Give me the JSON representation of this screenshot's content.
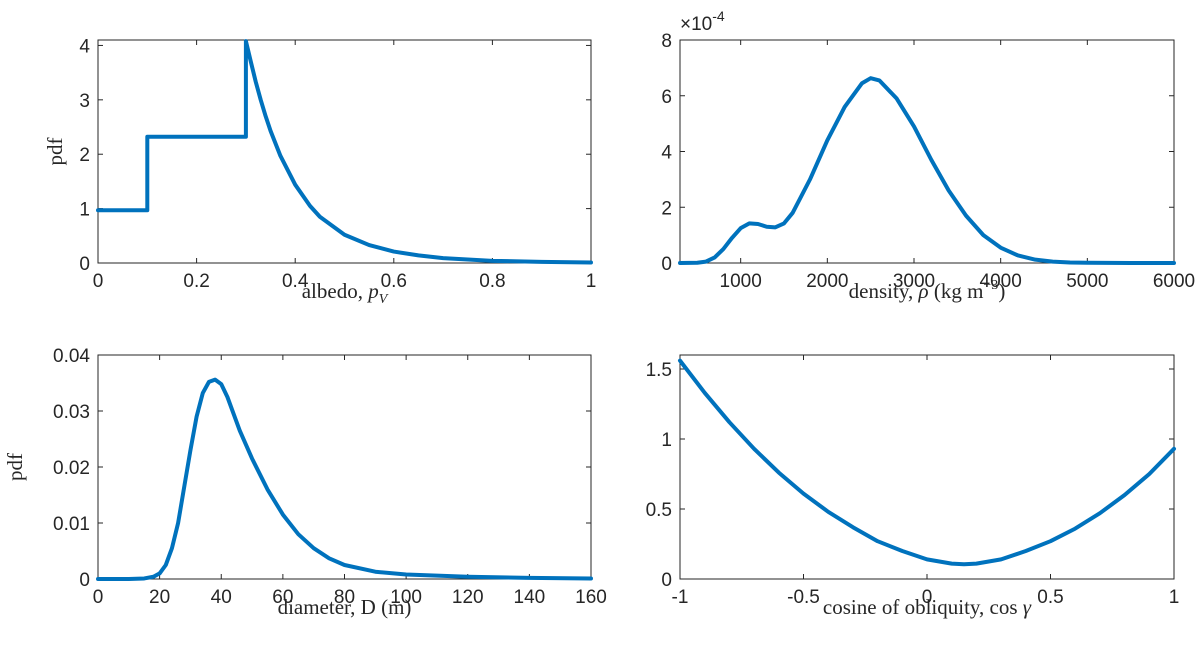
{
  "colors": {
    "line": "#0072BD",
    "axes": "#262626"
  },
  "chart_data": [
    {
      "type": "line",
      "xlabel_parts": [
        "albedo, ",
        "p",
        "V"
      ],
      "ylabel": "pdf",
      "xlim": [
        0,
        1
      ],
      "ylim": [
        0,
        4.1
      ],
      "xticks": [
        0,
        0.2,
        0.4,
        0.6,
        0.8,
        1
      ],
      "xtick_labels": [
        "0",
        "0.2",
        "0.4",
        "0.6",
        "0.8",
        "1"
      ],
      "yticks": [
        0,
        1,
        2,
        3,
        4
      ],
      "ytick_labels": [
        "0",
        "1",
        "2",
        "3",
        "4"
      ],
      "grid": false,
      "series": [
        {
          "x": [
            0,
            0.1,
            0.1,
            0.3,
            0.3,
            0.31,
            0.32,
            0.33,
            0.34,
            0.35,
            0.37,
            0.4,
            0.43,
            0.45,
            0.5,
            0.55,
            0.6,
            0.65,
            0.7,
            0.8,
            0.9,
            1.0
          ],
          "y": [
            0.97,
            0.97,
            2.32,
            2.32,
            4.08,
            3.7,
            3.33,
            3.0,
            2.7,
            2.43,
            1.97,
            1.44,
            1.05,
            0.85,
            0.52,
            0.33,
            0.21,
            0.14,
            0.09,
            0.04,
            0.02,
            0.01
          ]
        }
      ]
    },
    {
      "type": "line",
      "xlabel_parts": [
        "density, ",
        "ρ",
        " (kg m",
        "−3",
        ")"
      ],
      "ylabel": "",
      "exponent": [
        "×10",
        "-4"
      ],
      "xlim": [
        300,
        6000
      ],
      "ylim": [
        0,
        8
      ],
      "xticks": [
        1000,
        2000,
        3000,
        4000,
        5000,
        6000
      ],
      "xtick_labels": [
        "1000",
        "2000",
        "3000",
        "4000",
        "5000",
        "6000"
      ],
      "yticks": [
        0,
        2,
        4,
        6,
        8
      ],
      "ytick_labels": [
        "0",
        "2",
        "4",
        "6",
        "8"
      ],
      "grid": false,
      "series": [
        {
          "x": [
            300,
            500,
            600,
            700,
            800,
            900,
            1000,
            1100,
            1200,
            1300,
            1400,
            1500,
            1600,
            1800,
            2000,
            2200,
            2400,
            2500,
            2600,
            2800,
            3000,
            3200,
            3400,
            3600,
            3800,
            4000,
            4200,
            4400,
            4600,
            4800,
            5000,
            5500,
            6000
          ],
          "y": [
            0,
            0.01,
            0.05,
            0.2,
            0.5,
            0.9,
            1.25,
            1.42,
            1.4,
            1.3,
            1.28,
            1.42,
            1.8,
            3.0,
            4.4,
            5.6,
            6.45,
            6.63,
            6.55,
            5.9,
            4.9,
            3.7,
            2.6,
            1.7,
            1.0,
            0.55,
            0.27,
            0.12,
            0.05,
            0.02,
            0.01,
            0,
            0
          ]
        }
      ]
    },
    {
      "type": "line",
      "xlabel_parts": [
        "diameter, D (m)"
      ],
      "ylabel": "pdf",
      "xlim": [
        0,
        160
      ],
      "ylim": [
        0,
        0.04
      ],
      "xticks": [
        0,
        20,
        40,
        60,
        80,
        100,
        120,
        140,
        160
      ],
      "xtick_labels": [
        "0",
        "20",
        "40",
        "60",
        "80",
        "100",
        "120",
        "140",
        "160"
      ],
      "yticks": [
        0,
        0.01,
        0.02,
        0.03,
        0.04
      ],
      "ytick_labels": [
        "0",
        "0.01",
        "0.02",
        "0.03",
        "0.04"
      ],
      "grid": false,
      "series": [
        {
          "x": [
            0,
            10,
            15,
            18,
            20,
            22,
            24,
            26,
            28,
            30,
            32,
            34,
            36,
            38,
            40,
            42,
            44,
            46,
            48,
            50,
            55,
            60,
            65,
            70,
            75,
            80,
            90,
            100,
            120,
            140,
            160
          ],
          "y": [
            0,
            0,
            0.0001,
            0.0004,
            0.001,
            0.0025,
            0.0055,
            0.01,
            0.0165,
            0.023,
            0.029,
            0.0332,
            0.0352,
            0.0356,
            0.0348,
            0.0325,
            0.0295,
            0.0265,
            0.024,
            0.0215,
            0.016,
            0.0115,
            0.008,
            0.0055,
            0.0037,
            0.0025,
            0.0013,
            0.0008,
            0.0004,
            0.0002,
            0.0001
          ]
        }
      ]
    },
    {
      "type": "line",
      "xlabel_parts": [
        "cosine of obliquity, cos ",
        "γ"
      ],
      "ylabel": "",
      "xlim": [
        -1,
        1
      ],
      "ylim": [
        0,
        1.6
      ],
      "xticks": [
        -1,
        -0.5,
        0,
        0.5,
        1
      ],
      "xtick_labels": [
        "-1",
        "-0.5",
        "0",
        "0.5",
        "1"
      ],
      "yticks": [
        0,
        0.5,
        1,
        1.5
      ],
      "ytick_labels": [
        "0",
        "0.5",
        "1",
        "1.5"
      ],
      "grid": false,
      "series": [
        {
          "x": [
            -1,
            -0.9,
            -0.8,
            -0.7,
            -0.6,
            -0.5,
            -0.4,
            -0.3,
            -0.2,
            -0.1,
            0,
            0.1,
            0.15,
            0.2,
            0.3,
            0.4,
            0.5,
            0.6,
            0.7,
            0.8,
            0.9,
            1
          ],
          "y": [
            1.56,
            1.33,
            1.12,
            0.93,
            0.76,
            0.61,
            0.48,
            0.37,
            0.27,
            0.2,
            0.14,
            0.11,
            0.105,
            0.11,
            0.14,
            0.2,
            0.27,
            0.36,
            0.47,
            0.6,
            0.75,
            0.93
          ]
        }
      ]
    }
  ]
}
